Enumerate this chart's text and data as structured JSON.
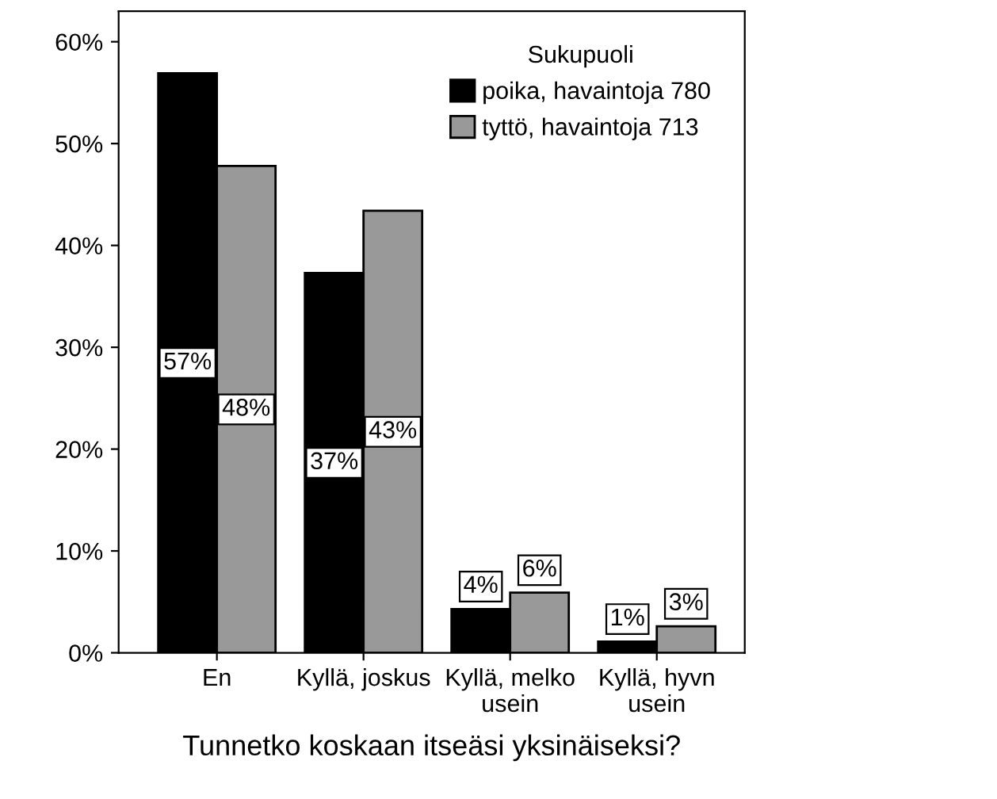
{
  "chart_data": {
    "type": "bar",
    "xlabel": "Tunnetko koskaan itseäsi yksinäiseksi?",
    "categories": [
      "En",
      "Kyllä, joskus",
      "Kyllä, melko\nusein",
      "Kyllä, hyvn\nusein"
    ],
    "series": [
      {
        "name": "poika, havaintoja 780",
        "color": "#000000",
        "values": [
          56.9,
          37.3,
          4.3,
          1.1
        ],
        "value_labels": [
          "57%",
          "37%",
          "4%",
          "1%"
        ]
      },
      {
        "name": "tyttö, havaintoja 713",
        "color": "#999999",
        "values": [
          47.8,
          43.4,
          5.9,
          2.6
        ],
        "value_labels": [
          "48%",
          "43%",
          "6%",
          "3%"
        ]
      }
    ],
    "legend_title": "Sukupuoli",
    "legend": "top right",
    "ylim": [
      0,
      63
    ],
    "yticks": [
      {
        "value": 0,
        "label": "0%"
      },
      {
        "value": 10,
        "label": "10%"
      },
      {
        "value": 20,
        "label": "20%"
      },
      {
        "value": 30,
        "label": "30%"
      },
      {
        "value": 40,
        "label": "40%"
      },
      {
        "value": 50,
        "label": "50%"
      },
      {
        "value": 60,
        "label": "60%"
      }
    ],
    "grid": false
  }
}
